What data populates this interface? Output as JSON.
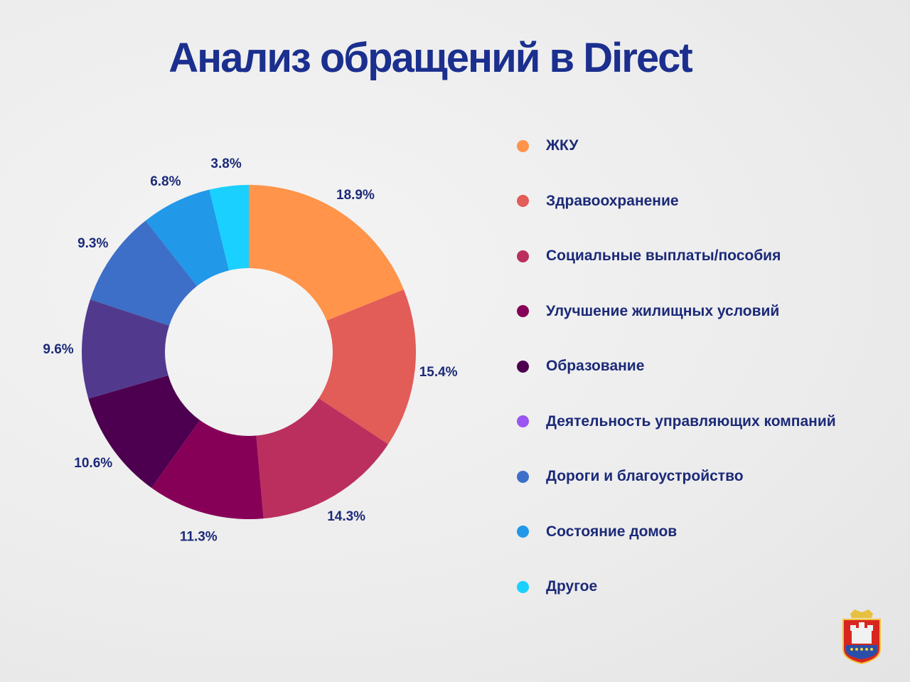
{
  "title": "Анализ обращений в Direct",
  "chart_data": {
    "type": "pie",
    "variant": "donut",
    "title": "Анализ обращений в Direct",
    "unit": "%",
    "legend_position": "right",
    "slices": [
      {
        "label": "ЖКУ",
        "value": 18.9,
        "value_label": "18.9%",
        "color": "#ff944a",
        "legend_color": "#ff944a"
      },
      {
        "label": "Здравоохранение",
        "value": 15.4,
        "value_label": "15.4%",
        "color": "#e25c58",
        "legend_color": "#e25c58"
      },
      {
        "label": "Социальные выплаты/пособия",
        "value": 14.3,
        "value_label": "14.3%",
        "color": "#bb2f5e",
        "legend_color": "#bb2f5e"
      },
      {
        "label": "Улучшение жилищных условий",
        "value": 11.3,
        "value_label": "11.3%",
        "color": "#870057",
        "legend_color": "#870057"
      },
      {
        "label": "Образование",
        "value": 10.6,
        "value_label": "10.6%",
        "color": "#4d0050",
        "legend_color": "#4d0050"
      },
      {
        "label": "Деятельность управляющих компаний",
        "value": 9.6,
        "value_label": "9.6%",
        "color": "#513a8e",
        "legend_color": "#9b55f0"
      },
      {
        "label": "Дороги и благоустройство",
        "value": 9.3,
        "value_label": "9.3%",
        "color": "#3d6fc8",
        "legend_color": "#3d6fc8"
      },
      {
        "label": "Состояние домов",
        "value": 6.8,
        "value_label": "6.8%",
        "color": "#2198e8",
        "legend_color": "#2198e8"
      },
      {
        "label": "Другое",
        "value": 3.8,
        "value_label": "3.8%",
        "color": "#1ad0ff",
        "legend_color": "#1ad0ff"
      }
    ]
  },
  "logo": {
    "alt": "coat of arms"
  }
}
